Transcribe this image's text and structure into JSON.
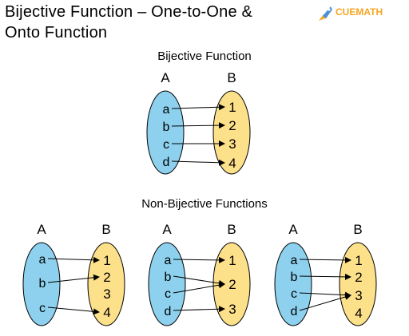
{
  "title_line1": "Bijective Function – One-to-One &",
  "title_line2": "Onto Function",
  "logo_text": "CUEMATH",
  "section1_title": "Bijective Function",
  "section2_title": "Non-Bijective Functions",
  "colors": {
    "domain_fill": "#8dd1ef",
    "codomain_fill": "#fde08a",
    "outline": "#000000"
  },
  "diagrams": [
    {
      "set_a_label": "A",
      "set_b_label": "B",
      "domain": [
        "a",
        "b",
        "c",
        "d"
      ],
      "codomain": [
        "1",
        "2",
        "3",
        "4"
      ],
      "mapping": [
        [
          "a",
          "1"
        ],
        [
          "b",
          "2"
        ],
        [
          "c",
          "3"
        ],
        [
          "d",
          "4"
        ]
      ]
    },
    {
      "set_a_label": "A",
      "set_b_label": "B",
      "domain": [
        "a",
        "b",
        "c"
      ],
      "codomain": [
        "1",
        "2",
        "3",
        "4"
      ],
      "mapping": [
        [
          "a",
          "1"
        ],
        [
          "b",
          "2"
        ],
        [
          "c",
          "4"
        ]
      ]
    },
    {
      "set_a_label": "A",
      "set_b_label": "B",
      "domain": [
        "a",
        "b",
        "c",
        "d"
      ],
      "codomain": [
        "1",
        "2",
        "3"
      ],
      "mapping": [
        [
          "a",
          "1"
        ],
        [
          "b",
          "2"
        ],
        [
          "c",
          "2"
        ],
        [
          "d",
          "3"
        ]
      ]
    },
    {
      "set_a_label": "A",
      "set_b_label": "B",
      "domain": [
        "a",
        "b",
        "c",
        "d"
      ],
      "codomain": [
        "1",
        "2",
        "3",
        "4"
      ],
      "mapping": [
        [
          "a",
          "1"
        ],
        [
          "b",
          "2"
        ],
        [
          "c",
          "3"
        ],
        [
          "d",
          "3"
        ]
      ]
    }
  ]
}
